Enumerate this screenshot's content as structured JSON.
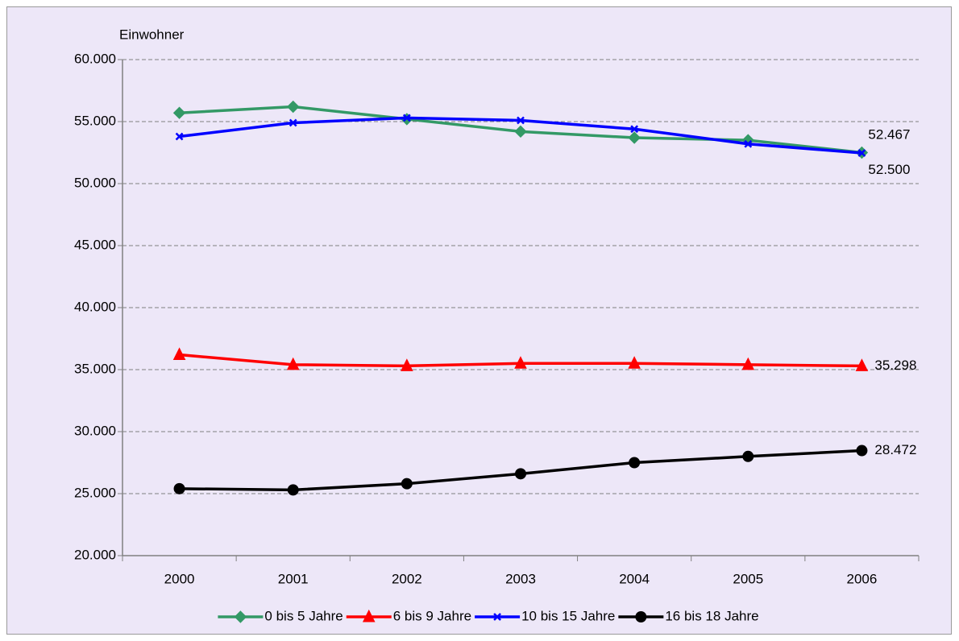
{
  "chart_data": {
    "type": "line",
    "y_axis_label": "Einwohner",
    "categories": [
      "2000",
      "2001",
      "2002",
      "2003",
      "2004",
      "2005",
      "2006"
    ],
    "series": [
      {
        "name": "0 bis 5 Jahre",
        "color": "#339966",
        "marker": "diamond",
        "values": [
          55700,
          56200,
          55200,
          54200,
          53700,
          53500,
          52500
        ],
        "value_labels": [
          null,
          null,
          null,
          null,
          null,
          null,
          "52.500"
        ]
      },
      {
        "name": "6 bis 9 Jahre",
        "color": "#ff0000",
        "marker": "triangle",
        "values": [
          36200,
          35400,
          35300,
          35500,
          35500,
          35400,
          35298
        ],
        "value_labels": [
          null,
          null,
          null,
          null,
          null,
          null,
          "35.298"
        ]
      },
      {
        "name": "10 bis 15 Jahre",
        "color": "#0000ff",
        "marker": "x",
        "values": [
          53800,
          54900,
          55300,
          55100,
          54400,
          53200,
          52467
        ],
        "value_labels": [
          null,
          null,
          null,
          null,
          null,
          null,
          "52.467"
        ]
      },
      {
        "name": "16 bis 18 Jahre",
        "color": "#000000",
        "marker": "circle",
        "values": [
          25400,
          25300,
          25800,
          26600,
          27500,
          28000,
          28472
        ],
        "value_labels": [
          null,
          null,
          null,
          null,
          null,
          null,
          "28.472"
        ]
      }
    ],
    "ylim": [
      20000,
      60000
    ],
    "yticks": [
      {
        "value": 20000,
        "label": "20.000"
      },
      {
        "value": 25000,
        "label": "25.000"
      },
      {
        "value": 30000,
        "label": "30.000"
      },
      {
        "value": 35000,
        "label": "35.000"
      },
      {
        "value": 40000,
        "label": "40.000"
      },
      {
        "value": 45000,
        "label": "45.000"
      },
      {
        "value": 50000,
        "label": "50.000"
      },
      {
        "value": 55000,
        "label": "55.000"
      },
      {
        "value": 60000,
        "label": "60.000"
      }
    ],
    "grid": true,
    "legend": "bottom"
  }
}
